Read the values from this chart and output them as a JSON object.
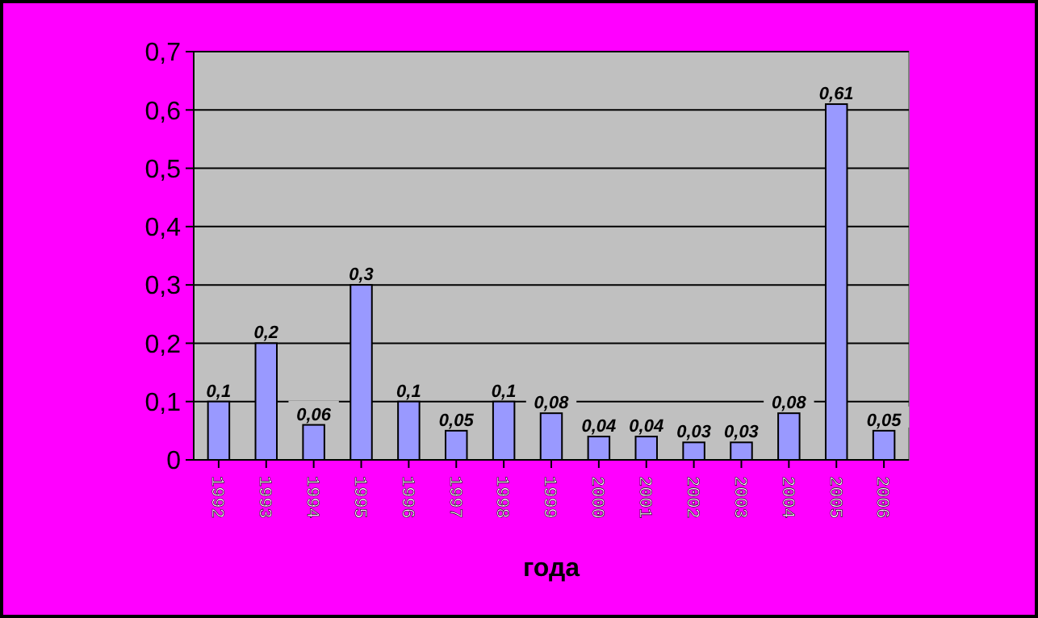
{
  "chart_data": {
    "type": "bar",
    "xlabel": "года",
    "categories": [
      "1992",
      "1993",
      "1994",
      "1995",
      "1996",
      "1997",
      "1998",
      "1999",
      "2000",
      "2001",
      "2002",
      "2003",
      "2004",
      "2005",
      "2006"
    ],
    "values": [
      0.1,
      0.2,
      0.06,
      0.3,
      0.1,
      0.05,
      0.1,
      0.08,
      0.04,
      0.04,
      0.03,
      0.03,
      0.08,
      0.61,
      0.05
    ],
    "value_labels": [
      "0,1",
      "0,2",
      "0,06",
      "0,3",
      "0,1",
      "0,05",
      "0,1",
      "0,08",
      "0,04",
      "0,04",
      "0,03",
      "0,03",
      "0,08",
      "0,61",
      "0,05"
    ],
    "color": "#9999ff",
    "ylim": [
      0,
      0.7
    ],
    "yticks": [
      {
        "value": 0,
        "label": "0"
      },
      {
        "value": 0.1,
        "label": "0,1"
      },
      {
        "value": 0.2,
        "label": "0,2"
      },
      {
        "value": 0.3,
        "label": "0,3"
      },
      {
        "value": 0.4,
        "label": "0,4"
      },
      {
        "value": 0.5,
        "label": "0,5"
      },
      {
        "value": 0.6,
        "label": "0,6"
      },
      {
        "value": 0.7,
        "label": "0,7"
      }
    ],
    "grid": "y"
  }
}
